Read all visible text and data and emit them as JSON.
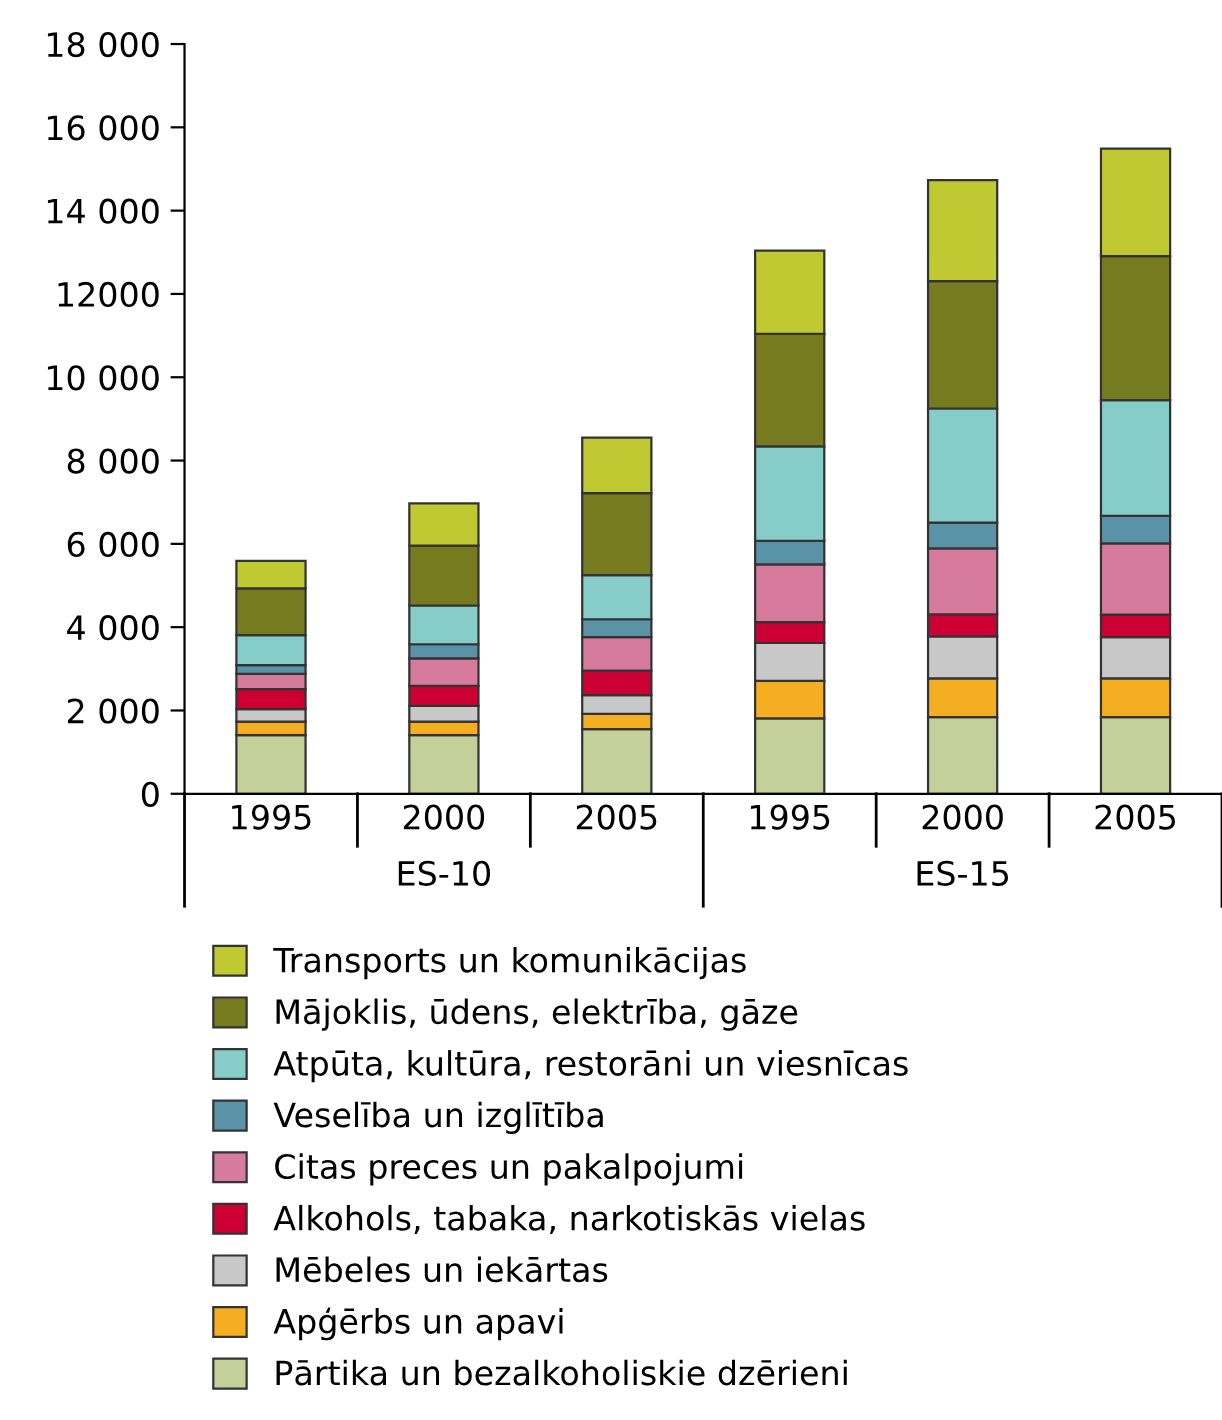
{
  "chart_data": {
    "type": "bar",
    "stacked": true,
    "categories": [
      "1995",
      "2000",
      "2005",
      "1995",
      "2000",
      "2005"
    ],
    "annotations": [
      "ES-10",
      "ES-15"
    ],
    "series": [
      {
        "name": "Pārtika un bezalkoholiskie dzērieni",
        "color": "#c4d09a",
        "values": [
          1410,
          1410,
          1550,
          1810,
          1840,
          1840
        ]
      },
      {
        "name": "Apģērbs un apavi",
        "color": "#f5ae22",
        "values": [
          320,
          320,
          370,
          900,
          930,
          930
        ]
      },
      {
        "name": "Mēbeles un iekārtas",
        "color": "#c8c8c8",
        "values": [
          300,
          380,
          450,
          910,
          1010,
          990
        ]
      },
      {
        "name": "Alkohols, tabaka, narkotiskās vielas",
        "color": "#cc0033",
        "values": [
          480,
          480,
          590,
          500,
          530,
          540
        ]
      },
      {
        "name": "Citas preces un pakalpojumi",
        "color": "#d67b9b",
        "values": [
          370,
          660,
          800,
          1390,
          1580,
          1710
        ]
      },
      {
        "name": "Veselība un izglītība",
        "color": "#5a93a8",
        "values": [
          210,
          340,
          430,
          560,
          620,
          660
        ]
      },
      {
        "name": "Atpūta, kultūra, restorāni un viesnīcas",
        "color": "#86ccc8",
        "values": [
          720,
          930,
          1060,
          2270,
          2740,
          2780
        ]
      },
      {
        "name": "Mājoklis, ūdens, elektrība, gāze",
        "color": "#767b1f",
        "values": [
          1120,
          1440,
          1970,
          2700,
          3060,
          3460
        ]
      },
      {
        "name": "Transports un komunikācijas",
        "color": "#c0c832",
        "values": [
          660,
          1010,
          1330,
          2000,
          2420,
          2580
        ]
      }
    ],
    "ylim": [
      0,
      18000
    ],
    "yticks": [
      0,
      {
        "value": 2000,
        "label": "2 000"
      },
      {
        "value": 4000,
        "label": "4 000"
      },
      {
        "value": 6000,
        "label": "6 000"
      },
      {
        "value": 8000,
        "label": "8 000"
      },
      {
        "value": 10000,
        "label": "10 000"
      },
      12000,
      {
        "value": 14000,
        "label": "14 000"
      },
      {
        "value": 16000,
        "label": "16 000"
      },
      {
        "value": 18000,
        "label": "18 000"
      }
    ],
    "grid": false,
    "legend": "bottom"
  }
}
